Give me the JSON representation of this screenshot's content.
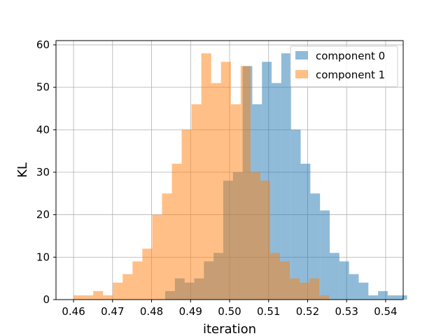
{
  "chart_data": {
    "type": "histogram",
    "xlabel": "iteration",
    "ylabel": "KL",
    "xlim": [
      0.4555,
      0.5445
    ],
    "ylim": [
      0,
      61
    ],
    "xticks": [
      0.46,
      0.47,
      0.48,
      0.49,
      0.5,
      0.51,
      0.52,
      0.53,
      0.54
    ],
    "xtick_labels": [
      "0.46",
      "0.47",
      "0.48",
      "0.49",
      "0.50",
      "0.51",
      "0.52",
      "0.53",
      "0.54"
    ],
    "yticks": [
      0,
      10,
      20,
      30,
      40,
      50,
      60
    ],
    "ytick_labels": [
      "0",
      "10",
      "20",
      "30",
      "40",
      "50",
      "60"
    ],
    "grid": true,
    "legend_position": "top-right",
    "series": [
      {
        "name": "component 0",
        "color": "#1f77b4",
        "alpha": 0.5,
        "bin_start": 0.4835,
        "bin_width": 0.00248,
        "counts": [
          2,
          5,
          4,
          5,
          9,
          11,
          28,
          30,
          55,
          46,
          56,
          51,
          58,
          40,
          32,
          25,
          21,
          11,
          9,
          6,
          4,
          1,
          2,
          1,
          1
        ]
      },
      {
        "name": "component 1",
        "color": "#ff7f0e",
        "alpha": 0.5,
        "bin_start": 0.46,
        "bin_width": 0.00252,
        "counts": [
          1,
          1,
          2,
          1,
          4,
          6,
          9,
          12,
          20,
          25,
          32,
          40,
          46,
          58,
          51,
          56,
          46,
          55,
          30,
          28,
          11,
          9,
          5,
          4,
          5,
          1
        ]
      }
    ]
  }
}
